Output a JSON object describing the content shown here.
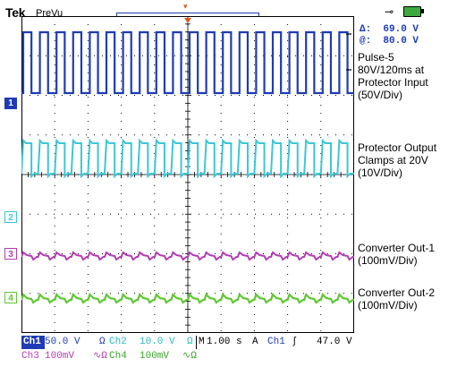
{
  "header": {
    "brand": "Tek",
    "mode": "PreVu",
    "trigger_marker": "▾",
    "plug_icon": "plug-icon",
    "battery_icon": "battery-icon"
  },
  "readouts": {
    "delta_label": "Δ:",
    "delta_value": "69.0 V",
    "phi_label": "@:",
    "phi_value": "80.0 V"
  },
  "annotations": [
    "Pulse-5\n80V/120ms at\nProtector Input\n(50V/Div)",
    "Protector Output\nClamps at 20V\n(10V/Div)",
    "Converter Out-1\n(100mV/Div)",
    "Converter Out-2\n(100mV/Div)"
  ],
  "channel_markers": [
    "1",
    "2",
    "3",
    "4"
  ],
  "status": {
    "ch1_label": "Ch1",
    "ch1_value": "50.0 V",
    "ch1_symbol": "Ω",
    "ch2_label": "Ch2",
    "ch2_value": "10.0 V",
    "ch2_symbol": "Ω",
    "ch3_label": "Ch3",
    "ch3_value": "100mV",
    "ch3_symbol": "∿Ω",
    "ch4_label": "Ch4",
    "ch4_value": "100mV",
    "ch4_symbol": "∿Ω",
    "m_label": "M",
    "timebase": "1.00 s",
    "acq_label": "A",
    "trigger_source": "Ch1",
    "trigger_edge": "ʃ",
    "trigger_level": "47.0 V"
  },
  "colors": {
    "ch1": "#1e3cb4",
    "ch2": "#3cc6d6",
    "ch3": "#b43cb4",
    "ch4": "#5fc832",
    "grid": "#000000",
    "trigger": "#e05a1a"
  }
}
